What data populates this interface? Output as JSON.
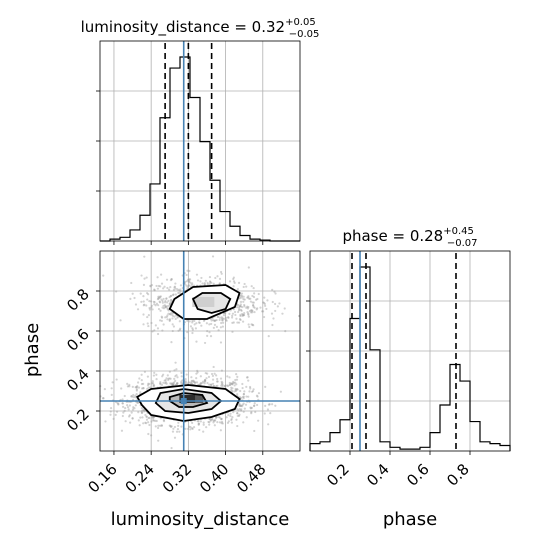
{
  "chart_data": {
    "type": "corner",
    "parameters": [
      "luminosity_distance",
      "phase"
    ],
    "truths": {
      "luminosity_distance": 0.31,
      "phase": 0.25
    },
    "panels": [
      {
        "id": "hist_luminosity_distance",
        "type": "histogram",
        "title": {
          "base": "luminosity_distance = 0.32",
          "sup": "+0.05",
          "sub": "−0.05"
        },
        "xlim": [
          0.13,
          0.56
        ],
        "ylim": [
          0,
          1
        ],
        "quantiles": [
          0.27,
          0.32,
          0.37
        ],
        "bins": {
          "edges": [
            0.13,
            0.1515,
            0.173,
            0.1945,
            0.216,
            0.2375,
            0.259,
            0.2805,
            0.302,
            0.3235,
            0.345,
            0.3665,
            0.388,
            0.4095,
            0.431,
            0.4525,
            0.474,
            0.4955,
            0.517,
            0.5385,
            0.56
          ],
          "heights": [
            0.0,
            0.01,
            0.02,
            0.06,
            0.14,
            0.31,
            0.67,
            0.94,
            1.0,
            0.78,
            0.54,
            0.33,
            0.16,
            0.08,
            0.03,
            0.01,
            0.005,
            0.0,
            0.0,
            0.0
          ]
        }
      },
      {
        "id": "hist_phase",
        "type": "histogram",
        "title": {
          "base": "phase = 0.28",
          "sup": "+0.45",
          "sub": "−0.07"
        },
        "xlim": [
          0.0,
          1.0
        ],
        "ylim": [
          0,
          1
        ],
        "quantiles": [
          0.21,
          0.28,
          0.73
        ],
        "xticks": [
          "0.2",
          "0.4",
          "0.6",
          "0.8"
        ],
        "bins": {
          "edges": [
            0.0,
            0.05,
            0.1,
            0.15,
            0.2,
            0.25,
            0.3,
            0.35,
            0.4,
            0.45,
            0.5,
            0.55,
            0.6,
            0.65,
            0.7,
            0.75,
            0.8,
            0.85,
            0.9,
            0.95,
            1.0
          ],
          "heights": [
            0.04,
            0.05,
            0.1,
            0.17,
            0.72,
            1.0,
            0.55,
            0.05,
            0.02,
            0.01,
            0.01,
            0.02,
            0.1,
            0.25,
            0.47,
            0.38,
            0.16,
            0.05,
            0.04,
            0.03
          ]
        }
      },
      {
        "id": "scatter_2d",
        "type": "density-contour",
        "xlabel": "luminosity_distance",
        "ylabel": "phase",
        "xlim": [
          0.13,
          0.56
        ],
        "ylim": [
          0.0,
          1.0
        ],
        "xticks": [
          "0.16",
          "0.24",
          "0.32",
          "0.40",
          "0.48"
        ],
        "yticks": [
          "0.2",
          "0.4",
          "0.6",
          "0.8"
        ],
        "modes": [
          {
            "center": [
              0.32,
              0.25
            ],
            "sigma": [
              0.045,
              0.045
            ],
            "weight": 0.67
          },
          {
            "center": [
              0.35,
              0.74
            ],
            "sigma": [
              0.045,
              0.05
            ],
            "weight": 0.33
          }
        ],
        "contours": [
          [
            [
              [
                0.22,
                0.23
              ],
              [
                0.24,
                0.18
              ],
              [
                0.31,
                0.15
              ],
              [
                0.37,
                0.17
              ],
              [
                0.42,
                0.21
              ],
              [
                0.43,
                0.26
              ],
              [
                0.4,
                0.31
              ],
              [
                0.32,
                0.33
              ],
              [
                0.24,
                0.31
              ],
              [
                0.21,
                0.27
              ]
            ],
            [
              [
                0.25,
                0.24
              ],
              [
                0.27,
                0.2
              ],
              [
                0.32,
                0.19
              ],
              [
                0.37,
                0.21
              ],
              [
                0.39,
                0.25
              ],
              [
                0.37,
                0.29
              ],
              [
                0.31,
                0.31
              ],
              [
                0.26,
                0.29
              ]
            ],
            [
              [
                0.28,
                0.25
              ],
              [
                0.3,
                0.22
              ],
              [
                0.33,
                0.22
              ],
              [
                0.36,
                0.24
              ],
              [
                0.35,
                0.28
              ],
              [
                0.31,
                0.29
              ],
              [
                0.28,
                0.27
              ]
            ]
          ],
          [
            [
              [
                0.29,
                0.76
              ],
              [
                0.33,
                0.82
              ],
              [
                0.4,
                0.83
              ],
              [
                0.43,
                0.79
              ],
              [
                0.42,
                0.72
              ],
              [
                0.36,
                0.66
              ],
              [
                0.31,
                0.66
              ],
              [
                0.28,
                0.71
              ]
            ],
            [
              [
                0.33,
                0.76
              ],
              [
                0.35,
                0.79
              ],
              [
                0.39,
                0.79
              ],
              [
                0.41,
                0.76
              ],
              [
                0.4,
                0.71
              ],
              [
                0.37,
                0.69
              ],
              [
                0.34,
                0.71
              ]
            ]
          ]
        ]
      }
    ]
  }
}
